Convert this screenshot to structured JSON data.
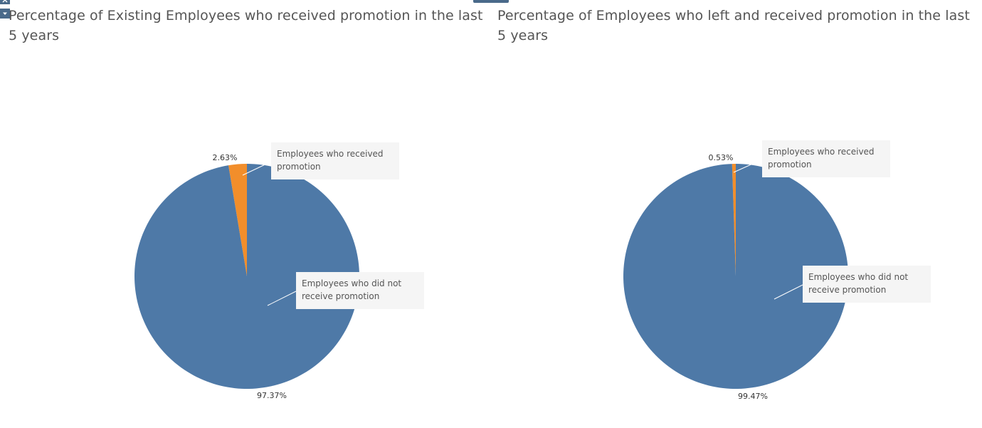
{
  "controls": {
    "close_icon": "close-icon",
    "menu_icon": "chevron-down-icon"
  },
  "colors": {
    "not_promoted": "#4e79a7",
    "promoted": "#f28e2b",
    "callout_bg": "#f5f5f5",
    "leader_line": "#ffffff"
  },
  "chart_data": [
    {
      "type": "pie",
      "title": "Percentage of Existing Employees who received promotion in the last 5 years",
      "slices": [
        {
          "label": "Employees who received promotion",
          "value": 2.63,
          "value_label": "2.63%",
          "color": "#f28e2b"
        },
        {
          "label": "Employees who did not receive promotion",
          "value": 97.37,
          "value_label": "97.37%",
          "color": "#4e79a7"
        }
      ]
    },
    {
      "type": "pie",
      "title": "Percentage of Employees who left and received promotion in the last 5 years",
      "slices": [
        {
          "label": "Employees who received promotion",
          "value": 0.53,
          "value_label": "0.53%",
          "color": "#f28e2b"
        },
        {
          "label": "Employees who did not receive promotion",
          "value": 99.47,
          "value_label": "99.47%",
          "color": "#4e79a7"
        }
      ]
    }
  ]
}
